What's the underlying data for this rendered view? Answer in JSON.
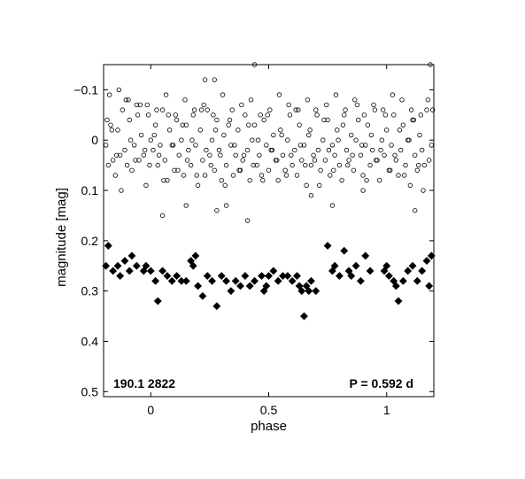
{
  "chart_data": {
    "type": "scatter",
    "xlabel": "phase",
    "ylabel": "magnitude  [mag]",
    "xlim": [
      -0.2,
      1.2
    ],
    "ylim": [
      -0.15,
      0.51
    ],
    "y_inverted": true,
    "x_ticks": [
      0,
      0.5,
      1
    ],
    "x_tick_labels": [
      "0",
      "0.5",
      "1"
    ],
    "y_ticks": [
      -0.1,
      0,
      0.1,
      0.2,
      0.3,
      0.4,
      0.5
    ],
    "y_tick_labels": [
      "−0.1",
      "0",
      "0.1",
      "0.2",
      "0.3",
      "0.4",
      "0.5"
    ],
    "grid": false,
    "annotations": {
      "star_id": "190.1 2822",
      "period": "P = 0.592 d"
    },
    "series": [
      {
        "marker": "open-circle",
        "color": "#000000",
        "x": [
          -0.19,
          -0.18,
          -0.17,
          -0.16,
          -0.15,
          -0.14,
          -0.13,
          -0.12,
          -0.11,
          -0.1,
          -0.09,
          -0.08,
          -0.07,
          -0.06,
          -0.05,
          -0.04,
          -0.03,
          -0.02,
          -0.01,
          0.0,
          0.01,
          0.02,
          0.03,
          0.04,
          0.05,
          0.06,
          0.07,
          0.08,
          0.09,
          0.1,
          0.11,
          0.12,
          0.13,
          0.14,
          0.15,
          0.16,
          0.17,
          0.18,
          0.19,
          0.2,
          0.21,
          0.22,
          0.23,
          0.24,
          0.25,
          0.26,
          0.27,
          0.28,
          0.29,
          0.3,
          0.31,
          0.32,
          0.33,
          0.34,
          0.35,
          0.36,
          0.37,
          0.38,
          0.39,
          0.4,
          0.41,
          0.42,
          0.43,
          0.44,
          0.45,
          0.46,
          0.47,
          0.48,
          0.49,
          0.5,
          0.51,
          0.52,
          0.53,
          0.54,
          0.55,
          0.56,
          0.57,
          0.58,
          0.59,
          0.6,
          0.61,
          0.62,
          0.63,
          0.64,
          0.65,
          0.66,
          0.67,
          0.68,
          0.69,
          0.7,
          0.71,
          0.72,
          0.73,
          0.74,
          0.75,
          0.76,
          0.77,
          0.78,
          0.79,
          0.8,
          0.81,
          0.82,
          0.83,
          0.84,
          0.85,
          0.86,
          0.87,
          0.88,
          0.89,
          0.9,
          0.91,
          0.92,
          0.93,
          0.94,
          0.95,
          0.96,
          0.97,
          0.98,
          0.99,
          1.0,
          1.01,
          1.02,
          1.03,
          1.04,
          1.05,
          1.06,
          1.07,
          1.08,
          1.09,
          1.1,
          1.11,
          1.12,
          1.13,
          1.14,
          1.15,
          1.16,
          1.17,
          1.18,
          1.19,
          -0.185,
          -0.165,
          -0.145,
          -0.125,
          -0.105,
          -0.085,
          -0.065,
          -0.045,
          -0.025,
          -0.005,
          0.015,
          0.035,
          0.055,
          0.075,
          0.095,
          0.115,
          0.135,
          0.155,
          0.175,
          0.195,
          0.215,
          0.235,
          0.255,
          0.275,
          0.295,
          0.315,
          0.335,
          0.355,
          0.375,
          0.395,
          0.415,
          0.435,
          0.455,
          0.475,
          0.495,
          0.515,
          0.535,
          0.555,
          0.575,
          0.595,
          0.615,
          0.635,
          0.655,
          0.675,
          0.695,
          0.715,
          0.735,
          0.755,
          0.775,
          0.795,
          0.815,
          0.835,
          0.855,
          0.875,
          0.895,
          0.915,
          0.935,
          0.955,
          0.975,
          0.995,
          1.015,
          1.035,
          1.055,
          1.075,
          1.095,
          1.115,
          1.135,
          1.155,
          1.175,
          1.195,
          -0.175,
          -0.135,
          -0.095,
          -0.055,
          -0.015,
          0.025,
          0.065,
          0.105,
          0.145,
          0.185,
          0.225,
          0.265,
          0.305,
          0.345,
          0.385,
          0.425,
          0.465,
          0.505,
          0.545,
          0.585,
          0.625,
          0.665,
          0.705,
          0.745,
          0.785,
          0.825,
          0.865,
          0.905,
          0.945,
          0.985,
          1.025,
          1.065,
          1.105,
          1.145,
          1.185,
          0.27,
          0.23,
          0.15,
          0.28,
          0.41,
          0.44,
          1.12,
          0.32,
          0.05,
          0.9,
          0.68,
          0.77
        ],
        "y": [
          0.01,
          0.05,
          -0.03,
          0.04,
          0.07,
          -0.02,
          0.03,
          -0.06,
          0.02,
          0.05,
          -0.04,
          0.06,
          0.01,
          -0.07,
          0.04,
          -0.01,
          0.03,
          0.09,
          -0.05,
          0.0,
          0.02,
          -0.03,
          0.05,
          0.01,
          -0.06,
          0.04,
          0.08,
          -0.02,
          0.01,
          0.06,
          -0.04,
          0.03,
          0.0,
          0.07,
          -0.03,
          0.02,
          0.05,
          -0.05,
          0.01,
          0.09,
          -0.02,
          0.04,
          0.07,
          -0.06,
          0.03,
          0.0,
          0.06,
          -0.04,
          0.02,
          0.08,
          -0.01,
          0.05,
          -0.03,
          0.01,
          0.07,
          0.03,
          -0.02,
          0.06,
          0.04,
          -0.05,
          0.02,
          0.08,
          0.0,
          -0.03,
          0.05,
          0.03,
          0.07,
          -0.04,
          0.01,
          0.06,
          0.02,
          -0.01,
          0.04,
          0.08,
          -0.02,
          0.03,
          0.06,
          0.0,
          -0.05,
          0.05,
          0.02,
          0.07,
          -0.03,
          0.04,
          0.01,
          0.09,
          -0.01,
          0.05,
          0.03,
          -0.06,
          0.02,
          0.06,
          0.0,
          0.04,
          -0.04,
          0.07,
          0.01,
          0.03,
          -0.02,
          0.05,
          0.08,
          -0.05,
          0.02,
          0.04,
          -0.01,
          0.06,
          0.0,
          -0.04,
          0.03,
          0.07,
          0.01,
          -0.03,
          0.05,
          0.02,
          -0.06,
          0.04,
          0.08,
          0.0,
          0.03,
          -0.02,
          0.06,
          0.01,
          -0.05,
          0.04,
          0.07,
          0.02,
          -0.03,
          0.05,
          0.0,
          0.09,
          -0.04,
          0.03,
          0.06,
          -0.01,
          0.02,
          0.05,
          -0.06,
          0.04,
          0.01,
          -0.04,
          -0.02,
          0.03,
          0.1,
          -0.08,
          0.0,
          0.04,
          -0.07,
          0.02,
          0.05,
          -0.01,
          0.03,
          0.08,
          -0.05,
          0.01,
          0.06,
          -0.03,
          0.04,
          0.0,
          0.07,
          -0.06,
          0.02,
          0.05,
          -0.02,
          0.03,
          0.09,
          -0.04,
          0.01,
          0.06,
          0.03,
          -0.03,
          0.05,
          0.0,
          0.08,
          -0.05,
          0.02,
          0.04,
          -0.01,
          0.07,
          0.03,
          -0.06,
          0.01,
          0.05,
          -0.02,
          0.04,
          0.09,
          -0.04,
          0.02,
          0.06,
          0.0,
          -0.03,
          0.05,
          0.03,
          -0.07,
          0.01,
          0.08,
          -0.01,
          0.04,
          0.02,
          -0.05,
          0.06,
          0.03,
          -0.02,
          0.07,
          0.0,
          -0.04,
          0.05,
          0.1,
          -0.08,
          -0.06,
          -0.09,
          -0.1,
          -0.08,
          -0.05,
          -0.07,
          -0.06,
          -0.09,
          -0.05,
          -0.08,
          -0.06,
          -0.07,
          -0.05,
          -0.09,
          -0.06,
          -0.07,
          -0.08,
          -0.05,
          -0.06,
          -0.09,
          -0.07,
          -0.06,
          -0.08,
          -0.05,
          -0.07,
          -0.09,
          -0.06,
          -0.08,
          -0.05,
          -0.07,
          -0.06,
          -0.09,
          -0.08,
          -0.06,
          -0.05,
          -0.15,
          -0.12,
          -0.12,
          0.13,
          0.14,
          0.16,
          -0.15,
          0.14,
          0.13,
          0.15,
          0.1,
          0.11,
          0.13
        ]
      },
      {
        "marker": "filled-diamond",
        "color": "#000000",
        "x": [
          -0.19,
          -0.18,
          -0.16,
          -0.14,
          -0.13,
          -0.11,
          -0.09,
          -0.08,
          -0.06,
          -0.03,
          -0.02,
          0.0,
          0.02,
          0.03,
          0.05,
          0.07,
          0.09,
          0.11,
          0.13,
          0.15,
          0.17,
          0.18,
          0.19,
          0.2,
          0.22,
          0.24,
          0.26,
          0.28,
          0.3,
          0.32,
          0.34,
          0.36,
          0.38,
          0.4,
          0.42,
          0.44,
          0.47,
          0.48,
          0.49,
          0.5,
          0.52,
          0.54,
          0.56,
          0.58,
          0.6,
          0.62,
          0.63,
          0.64,
          0.65,
          0.66,
          0.67,
          0.68,
          0.7,
          0.75,
          0.77,
          0.78,
          0.8,
          0.82,
          0.84,
          0.85,
          0.87,
          0.89,
          0.91,
          0.93,
          0.99,
          1.0,
          1.01,
          1.03,
          1.04,
          1.05,
          1.07,
          1.09,
          1.11,
          1.13,
          1.15,
          1.17,
          1.18,
          1.19
        ],
        "y": [
          0.25,
          0.21,
          0.26,
          0.25,
          0.27,
          0.24,
          0.26,
          0.23,
          0.25,
          0.26,
          0.25,
          0.26,
          0.28,
          0.32,
          0.26,
          0.27,
          0.28,
          0.27,
          0.28,
          0.28,
          0.24,
          0.25,
          0.23,
          0.29,
          0.31,
          0.27,
          0.28,
          0.33,
          0.27,
          0.28,
          0.3,
          0.28,
          0.29,
          0.27,
          0.29,
          0.28,
          0.27,
          0.3,
          0.29,
          0.27,
          0.26,
          0.28,
          0.27,
          0.27,
          0.28,
          0.27,
          0.29,
          0.3,
          0.35,
          0.29,
          0.3,
          0.28,
          0.3,
          0.21,
          0.26,
          0.25,
          0.27,
          0.22,
          0.26,
          0.27,
          0.25,
          0.28,
          0.23,
          0.26,
          0.26,
          0.25,
          0.27,
          0.28,
          0.29,
          0.32,
          0.28,
          0.26,
          0.25,
          0.28,
          0.26,
          0.24,
          0.29,
          0.23
        ]
      }
    ]
  }
}
